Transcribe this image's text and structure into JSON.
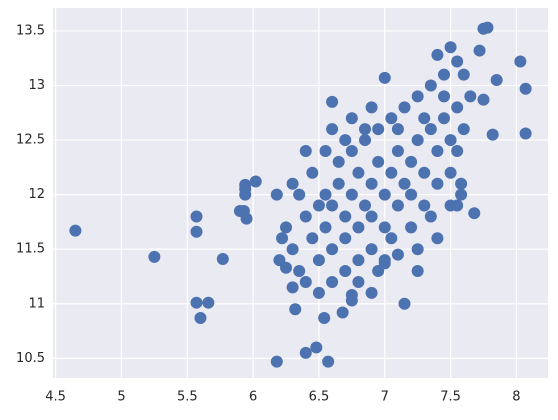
{
  "chart_data": {
    "type": "scatter",
    "color": "#4c72b0",
    "grid": true,
    "xlim": [
      4.48,
      8.24
    ],
    "ylim": [
      10.32,
      13.71
    ],
    "xticks": [
      4.5,
      5.0,
      5.5,
      6.0,
      6.5,
      7.0,
      7.5,
      8.0
    ],
    "yticks": [
      10.5,
      11.0,
      11.5,
      12.0,
      12.5,
      13.0,
      13.5
    ],
    "x": [
      4.65,
      5.25,
      5.57,
      5.57,
      5.57,
      5.6,
      5.66,
      5.77,
      5.9,
      5.93,
      5.95,
      5.94,
      5.94,
      5.94,
      6.02,
      6.18,
      6.18,
      6.22,
      6.25,
      6.3,
      6.32,
      6.4,
      6.48,
      6.57,
      6.54,
      6.68,
      6.75,
      6.75,
      6.9,
      7.15,
      6.4,
      6.6,
      6.85,
      7.0,
      7.4,
      7.5,
      7.55,
      7.75,
      7.78,
      7.72,
      7.85,
      8.03,
      8.07,
      8.07,
      7.82,
      7.75,
      7.68,
      7.58,
      7.5,
      7.58,
      7.25,
      7.1,
      7.0,
      6.8,
      6.5,
      6.3,
      6.55,
      6.6,
      6.65,
      6.7,
      6.75,
      6.8,
      6.85,
      6.9,
      6.95,
      7.0,
      7.05,
      7.1,
      7.15,
      7.2,
      7.25,
      7.3,
      7.35,
      7.4,
      7.45,
      7.5,
      6.6,
      6.7,
      6.8,
      6.9,
      7.0,
      7.1,
      7.2,
      7.3,
      6.5,
      6.55,
      6.65,
      6.75,
      6.85,
      6.95,
      7.05,
      7.15,
      7.25,
      7.35,
      7.45,
      7.55,
      7.6,
      7.65,
      7.6,
      6.45,
      6.4,
      6.35,
      6.3,
      6.25,
      6.2,
      6.45,
      6.55,
      6.6,
      6.7,
      6.8,
      6.9,
      7.0,
      7.05,
      7.2,
      7.35,
      7.4,
      7.5,
      7.55,
      6.5,
      6.6,
      6.75,
      6.9,
      7.1,
      7.3,
      7.45,
      6.35,
      6.4,
      6.95,
      7.25,
      7.4,
      7.55,
      6.7
    ],
    "values": [
      11.67,
      11.43,
      11.8,
      11.66,
      11.01,
      10.87,
      11.01,
      11.41,
      11.85,
      11.85,
      11.78,
      12.09,
      12.05,
      12.0,
      12.12,
      10.47,
      12.0,
      11.6,
      11.33,
      11.15,
      10.95,
      10.55,
      10.6,
      10.47,
      10.87,
      10.92,
      11.08,
      11.03,
      11.1,
      11.0,
      12.4,
      12.85,
      12.6,
      13.07,
      13.28,
      13.35,
      13.22,
      13.52,
      13.53,
      13.32,
      13.05,
      13.22,
      12.97,
      12.56,
      12.55,
      12.87,
      11.83,
      12.0,
      11.9,
      12.1,
      11.3,
      11.45,
      11.37,
      11.2,
      11.9,
      12.1,
      11.7,
      11.9,
      12.1,
      11.8,
      12.0,
      12.2,
      11.9,
      12.1,
      12.3,
      12.0,
      12.2,
      12.4,
      12.1,
      12.3,
      12.5,
      12.2,
      12.6,
      12.4,
      12.7,
      12.5,
      11.5,
      11.6,
      11.7,
      11.8,
      11.7,
      11.9,
      12.0,
      11.9,
      11.4,
      12.0,
      12.3,
      12.4,
      12.5,
      12.6,
      12.7,
      12.8,
      12.9,
      13.0,
      12.9,
      12.8,
      12.6,
      12.9,
      13.1,
      11.6,
      11.8,
      12.0,
      11.5,
      11.7,
      11.4,
      12.2,
      12.4,
      12.6,
      11.3,
      11.4,
      11.5,
      11.4,
      11.6,
      11.7,
      11.8,
      12.1,
      12.2,
      12.4,
      11.1,
      11.2,
      12.7,
      12.8,
      12.6,
      12.7,
      13.1,
      11.3,
      11.2,
      11.3,
      11.5,
      11.6,
      11.9,
      12.5
    ]
  }
}
